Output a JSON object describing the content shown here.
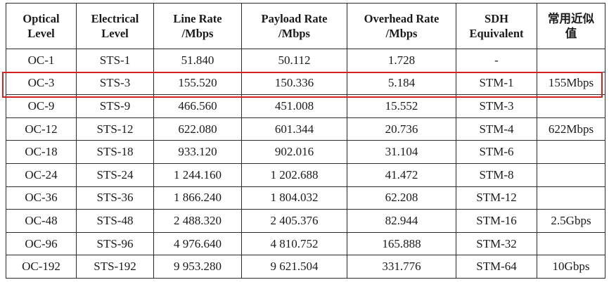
{
  "headers": [
    [
      "Optical",
      "Level"
    ],
    [
      "Electrical",
      "Level"
    ],
    [
      "Line Rate",
      "/Mbps"
    ],
    [
      "Payload Rate",
      "/Mbps"
    ],
    [
      "Overhead Rate",
      "/Mbps"
    ],
    [
      "SDH",
      "Equivalent"
    ],
    [
      "常用近似",
      "值"
    ]
  ],
  "rows": [
    [
      "OC-1",
      "STS-1",
      "51.840",
      "50.112",
      "1.728",
      "-",
      ""
    ],
    [
      "OC-3",
      "STS-3",
      "155.520",
      "150.336",
      "5.184",
      "STM-1",
      "155Mbps"
    ],
    [
      "OC-9",
      "STS-9",
      "466.560",
      "451.008",
      "15.552",
      "STM-3",
      ""
    ],
    [
      "OC-12",
      "STS-12",
      "622.080",
      "601.344",
      "20.736",
      "STM-4",
      "622Mbps"
    ],
    [
      "OC-18",
      "STS-18",
      "933.120",
      "902.016",
      "31.104",
      "STM-6",
      ""
    ],
    [
      "OC-24",
      "STS-24",
      "1 244.160",
      "1 202.688",
      "41.472",
      "STM-8",
      ""
    ],
    [
      "OC-36",
      "STS-36",
      "1 866.240",
      "1 804.032",
      "62.208",
      "STM-12",
      ""
    ],
    [
      "OC-48",
      "STS-48",
      "2 488.320",
      "2 405.376",
      "82.944",
      "STM-16",
      "2.5Gbps"
    ],
    [
      "OC-96",
      "STS-96",
      "4 976.640",
      "4 810.752",
      "165.888",
      "STM-32",
      ""
    ],
    [
      "OC-192",
      "STS-192",
      "9 953.280",
      "9 621.504",
      "331.776",
      "STM-64",
      "10Gbps"
    ]
  ],
  "highlight_color": "#d32222"
}
